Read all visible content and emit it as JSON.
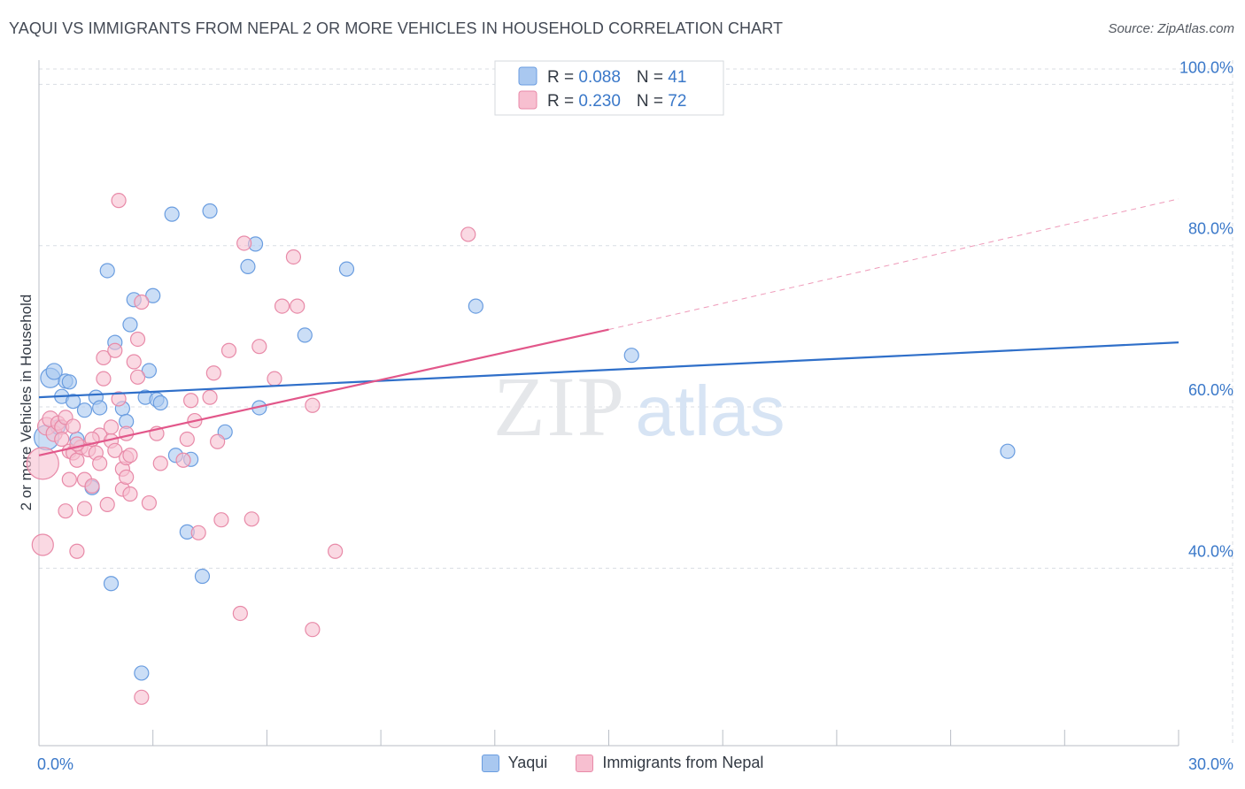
{
  "header": {
    "title": "YAQUI VS IMMIGRANTS FROM NEPAL 2 OR MORE VEHICLES IN HOUSEHOLD CORRELATION CHART",
    "source": "Source: ZipAtlas.com"
  },
  "watermark": {
    "zip": "ZIP",
    "atlas": "atlas"
  },
  "legend_box": {
    "rows": [
      {
        "r_label": "R = ",
        "r_value": "0.088",
        "n_label": "N = ",
        "n_value": "41"
      },
      {
        "r_label": "R = ",
        "r_value": "0.230",
        "n_label": "N = ",
        "n_value": "72"
      }
    ]
  },
  "colors": {
    "yaqui_fill": "#a9c8f0",
    "yaqui_stroke": "#6a9de0",
    "yaqui_line": "#2f6fc9",
    "nepal_fill": "#f7bfd0",
    "nepal_stroke": "#e88aa8",
    "nepal_line": "#e2578a",
    "value_text": "#3a78c9",
    "grid": "#d9dde3"
  },
  "chart_data": {
    "type": "scatter",
    "title": "YAQUI VS IMMIGRANTS FROM NEPAL 2 OR MORE VEHICLES IN HOUSEHOLD CORRELATION CHART",
    "xlabel": "",
    "ylabel": "2 or more Vehicles in Household",
    "xlim": [
      0,
      30
    ],
    "ylim": [
      18,
      103
    ],
    "x_tick_labels": [
      {
        "value": 0,
        "label": "0.0%"
      },
      {
        "value": 30,
        "label": "30.0%"
      }
    ],
    "x_minor_ticks": [
      3,
      6,
      9,
      12,
      15,
      18,
      21,
      24,
      27,
      30
    ],
    "y_ticks": [
      {
        "value": 40,
        "label": "40.0%"
      },
      {
        "value": 60,
        "label": "60.0%"
      },
      {
        "value": 80,
        "label": "80.0%"
      },
      {
        "value": 100,
        "label": "100.0%"
      }
    ],
    "grid": true,
    "legend_position": "bottom",
    "series": [
      {
        "name": "Yaqui",
        "r": 0.088,
        "n": 41,
        "trend": {
          "x0": 0,
          "y0": 61.2,
          "x1": 30,
          "y1": 68.0,
          "dashed_after": null
        },
        "points": [
          [
            0.2,
            56.2,
            14
          ],
          [
            0.3,
            63.6,
            11
          ],
          [
            0.4,
            64.4,
            9
          ],
          [
            0.6,
            61.3,
            8
          ],
          [
            0.7,
            63.2,
            8
          ],
          [
            0.8,
            63.1,
            8
          ],
          [
            0.9,
            60.7,
            8
          ],
          [
            1.0,
            56.0,
            8
          ],
          [
            1.2,
            59.6,
            8
          ],
          [
            1.4,
            50.0,
            8
          ],
          [
            1.5,
            61.2,
            8
          ],
          [
            1.6,
            59.9,
            8
          ],
          [
            1.8,
            76.9,
            8
          ],
          [
            1.9,
            38.1,
            8
          ],
          [
            2.0,
            68.0,
            8
          ],
          [
            2.2,
            59.8,
            8
          ],
          [
            2.3,
            58.2,
            8
          ],
          [
            2.4,
            70.2,
            8
          ],
          [
            2.5,
            73.3,
            8
          ],
          [
            2.7,
            27.0,
            8
          ],
          [
            2.8,
            61.2,
            8
          ],
          [
            2.9,
            64.5,
            8
          ],
          [
            3.0,
            73.8,
            8
          ],
          [
            3.1,
            60.9,
            8
          ],
          [
            3.2,
            60.5,
            8
          ],
          [
            3.5,
            83.9,
            8
          ],
          [
            3.6,
            54.0,
            8
          ],
          [
            3.9,
            44.5,
            8
          ],
          [
            4.0,
            53.5,
            8
          ],
          [
            4.3,
            39.0,
            8
          ],
          [
            4.5,
            84.3,
            8
          ],
          [
            4.9,
            56.9,
            8
          ],
          [
            5.5,
            77.4,
            8
          ],
          [
            5.7,
            80.2,
            8
          ],
          [
            5.8,
            59.9,
            8
          ],
          [
            7.0,
            68.9,
            8
          ],
          [
            8.1,
            77.1,
            8
          ],
          [
            11.5,
            72.5,
            8
          ],
          [
            15.6,
            66.4,
            8
          ],
          [
            25.5,
            54.5,
            8
          ],
          [
            0.5,
            57.5,
            8
          ]
        ]
      },
      {
        "name": "Immigrants from Nepal",
        "r": 0.23,
        "n": 72,
        "trend": {
          "x0": 0,
          "y0": 54.0,
          "x1": 15.0,
          "y1": 69.6,
          "dash_x1": 30,
          "dash_y1": 85.8
        },
        "points": [
          [
            0.1,
            53.0,
            18
          ],
          [
            0.1,
            42.9,
            12
          ],
          [
            0.2,
            57.6,
            10
          ],
          [
            0.3,
            58.5,
            9
          ],
          [
            0.4,
            56.7,
            9
          ],
          [
            0.5,
            58.0,
            8
          ],
          [
            0.6,
            57.5,
            8
          ],
          [
            0.7,
            58.7,
            8
          ],
          [
            0.8,
            54.5,
            8
          ],
          [
            0.9,
            57.6,
            8
          ],
          [
            0.7,
            47.1,
            8
          ],
          [
            0.8,
            51.0,
            8
          ],
          [
            0.9,
            54.3,
            8
          ],
          [
            1.0,
            53.4,
            8
          ],
          [
            1.0,
            42.1,
            8
          ],
          [
            1.1,
            55.0,
            8
          ],
          [
            1.2,
            51.0,
            8
          ],
          [
            1.2,
            47.4,
            8
          ],
          [
            1.3,
            54.7,
            8
          ],
          [
            1.4,
            50.2,
            8
          ],
          [
            1.5,
            54.3,
            8
          ],
          [
            1.6,
            56.5,
            8
          ],
          [
            1.6,
            53.0,
            8
          ],
          [
            1.7,
            66.1,
            8
          ],
          [
            1.7,
            63.5,
            8
          ],
          [
            1.8,
            47.9,
            8
          ],
          [
            1.9,
            55.8,
            8
          ],
          [
            1.9,
            57.5,
            8
          ],
          [
            2.0,
            54.6,
            8
          ],
          [
            2.0,
            67.0,
            8
          ],
          [
            2.1,
            85.6,
            8
          ],
          [
            2.1,
            61.0,
            8
          ],
          [
            2.2,
            52.3,
            8
          ],
          [
            2.2,
            49.8,
            8
          ],
          [
            2.3,
            53.7,
            8
          ],
          [
            2.3,
            56.7,
            8
          ],
          [
            2.3,
            51.3,
            8
          ],
          [
            2.4,
            49.2,
            8
          ],
          [
            2.5,
            65.6,
            8
          ],
          [
            2.6,
            63.7,
            8
          ],
          [
            2.6,
            68.4,
            8
          ],
          [
            2.7,
            73.0,
            8
          ],
          [
            2.7,
            24.0,
            8
          ],
          [
            2.9,
            48.1,
            8
          ],
          [
            3.1,
            56.7,
            8
          ],
          [
            3.2,
            53.0,
            8
          ],
          [
            3.8,
            53.4,
            8
          ],
          [
            3.9,
            56.0,
            8
          ],
          [
            4.0,
            60.8,
            8
          ],
          [
            4.1,
            58.3,
            8
          ],
          [
            4.2,
            44.4,
            8
          ],
          [
            4.5,
            61.2,
            8
          ],
          [
            4.6,
            64.2,
            8
          ],
          [
            4.7,
            55.7,
            8
          ],
          [
            4.8,
            46.0,
            8
          ],
          [
            5.0,
            67.0,
            8
          ],
          [
            5.3,
            34.4,
            8
          ],
          [
            5.4,
            80.3,
            8
          ],
          [
            5.6,
            46.1,
            8
          ],
          [
            5.8,
            67.5,
            8
          ],
          [
            6.2,
            63.5,
            8
          ],
          [
            6.4,
            72.5,
            8
          ],
          [
            6.7,
            78.6,
            8
          ],
          [
            6.8,
            72.5,
            8
          ],
          [
            7.2,
            60.2,
            8
          ],
          [
            7.2,
            32.4,
            8
          ],
          [
            7.8,
            42.1,
            8
          ],
          [
            11.3,
            81.4,
            8
          ],
          [
            1.0,
            55.4,
            8
          ],
          [
            1.4,
            56.0,
            8
          ],
          [
            0.6,
            56.0,
            8
          ],
          [
            2.4,
            54.0,
            8
          ]
        ]
      }
    ]
  },
  "bottom_legend": {
    "items": [
      {
        "label": "Yaqui"
      },
      {
        "label": "Immigrants from Nepal"
      }
    ]
  }
}
